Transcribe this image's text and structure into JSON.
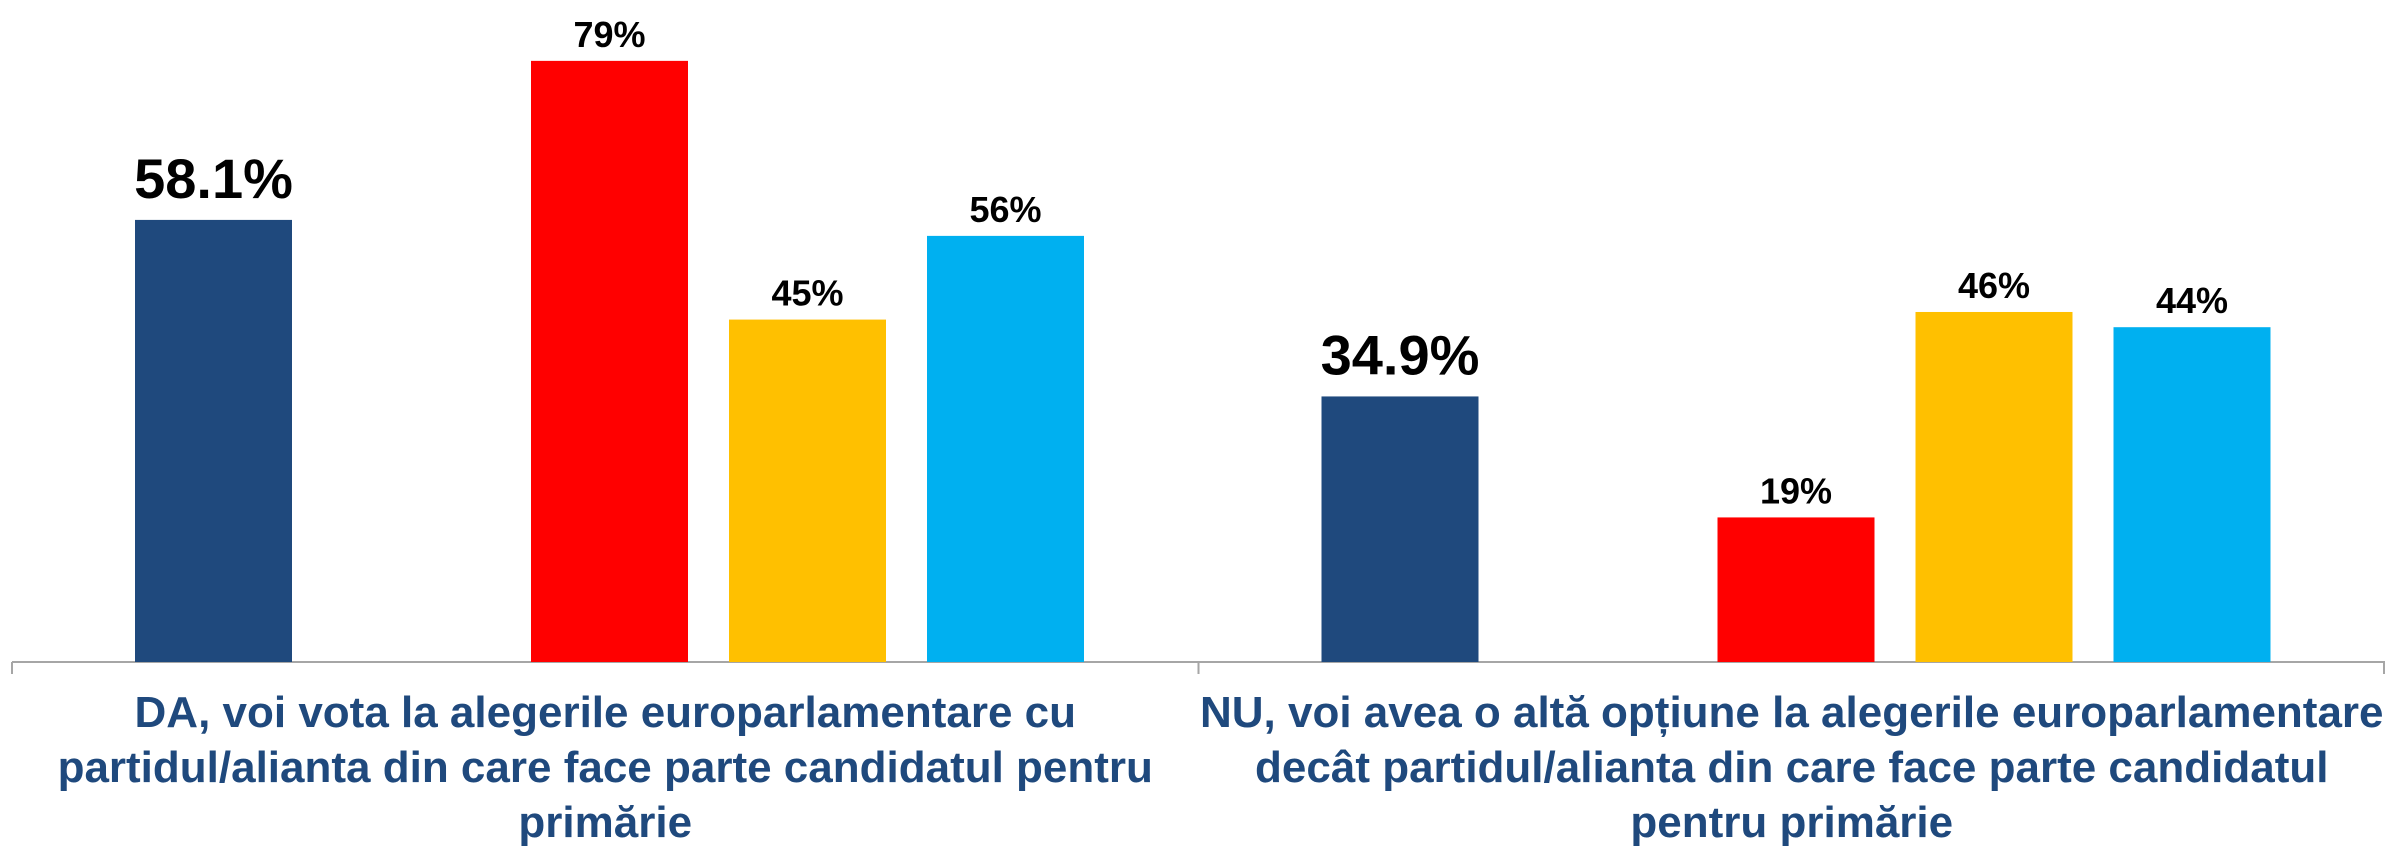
{
  "chart_data": {
    "type": "bar",
    "categories": [
      "DA, voi vota la alegerile europarlamentare cu partidul/alianta din care face parte candidatul pentru primărie",
      "NU, voi avea o altă opțiune la alegerile europarlamentare decât partidul/alianta din care face parte candidatul pentru primărie"
    ],
    "series": [
      {
        "color": "#1f497d",
        "values": [
          58.1,
          34.9
        ],
        "value_labels": [
          "58.1%",
          "34.9%"
        ]
      },
      {
        "color": "#ff0000",
        "values": [
          79,
          19
        ],
        "value_labels": [
          "79%",
          "19%"
        ]
      },
      {
        "color": "#ffc000",
        "values": [
          45,
          46
        ],
        "value_labels": [
          "45%",
          "46%"
        ]
      },
      {
        "color": "#00b0f0",
        "values": [
          56,
          44
        ],
        "value_labels": [
          "56%",
          "44%"
        ]
      }
    ],
    "ylim": [
      0,
      87
    ]
  }
}
